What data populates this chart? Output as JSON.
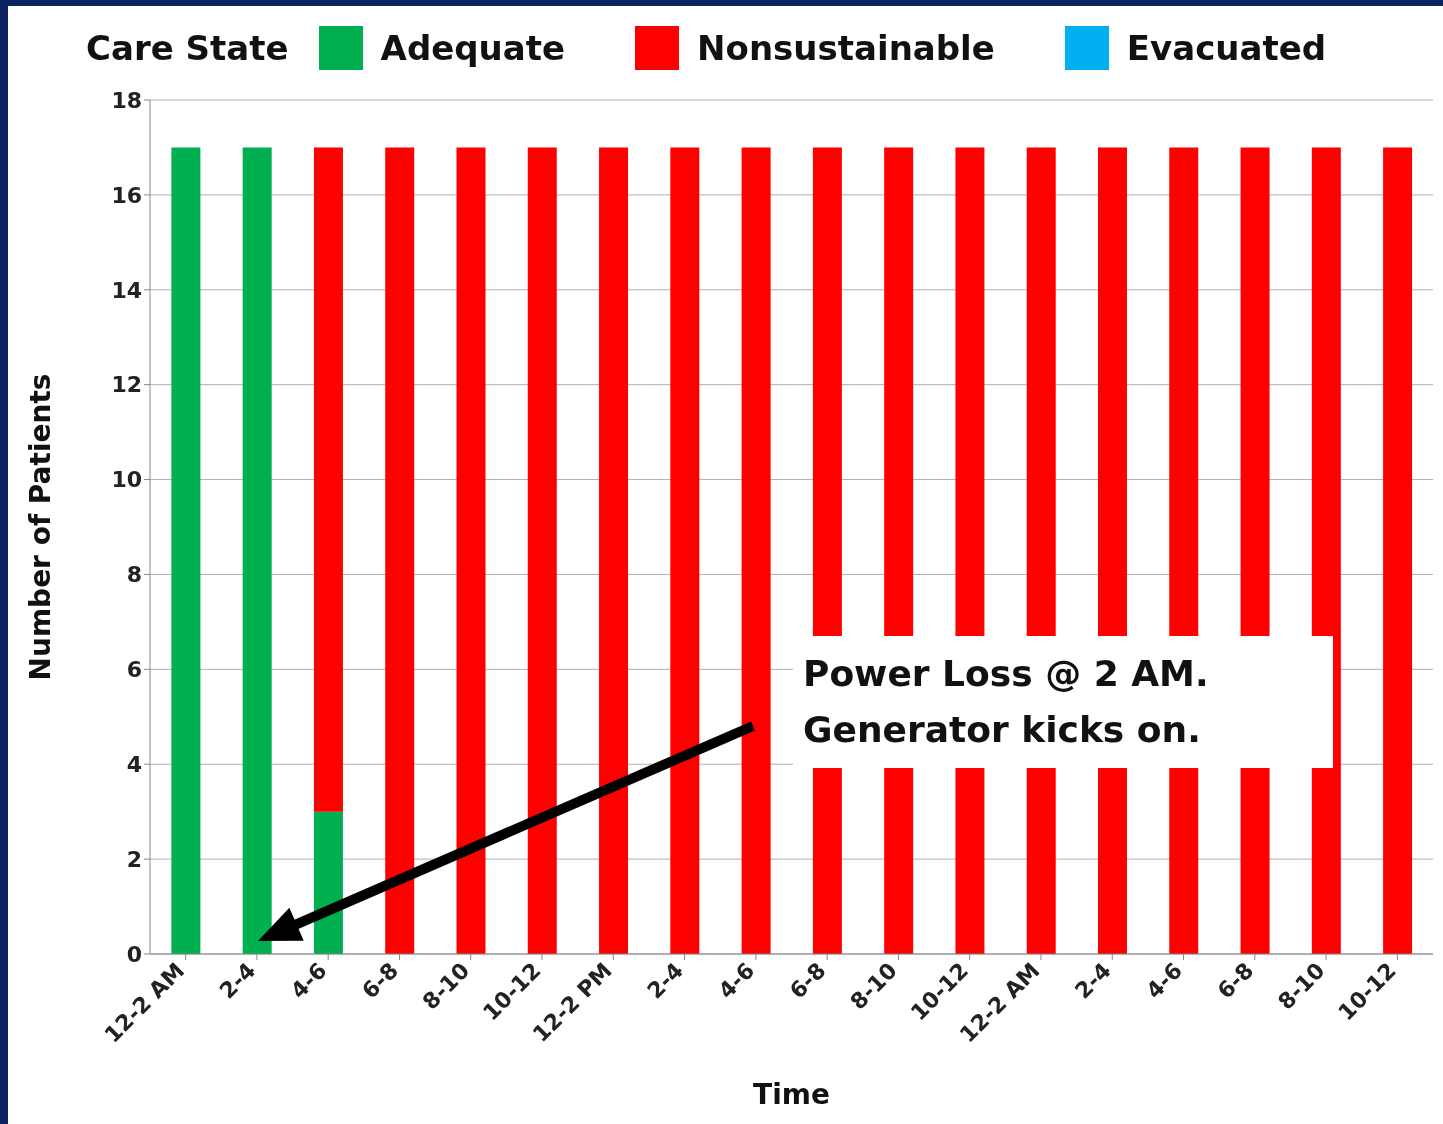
{
  "chart_data": {
    "type": "bar",
    "stacked": true,
    "legend_title": "Care State",
    "legend": "top",
    "xlabel": "Time",
    "ylabel": "Number of Patients",
    "categories": [
      "12-2 AM",
      "2-4",
      "4-6",
      "6-8",
      "8-10",
      "10-12",
      "12-2 PM",
      "2-4",
      "4-6",
      "6-8",
      "8-10",
      "10-12",
      "12-2 AM",
      "2-4",
      "4-6",
      "6-8",
      "8-10",
      "10-12"
    ],
    "series": [
      {
        "name": "Adequate",
        "color": "#00b050",
        "values": [
          17,
          17,
          3,
          0,
          0,
          0,
          0,
          0,
          0,
          0,
          0,
          0,
          0,
          0,
          0,
          0,
          0,
          0
        ]
      },
      {
        "name": "Nonsustainable",
        "color": "#ff0000",
        "values": [
          0,
          0,
          14,
          17,
          17,
          17,
          17,
          17,
          17,
          17,
          17,
          17,
          17,
          17,
          17,
          17,
          17,
          17
        ]
      },
      {
        "name": "Evacuated",
        "color": "#00b0f0",
        "values": [
          0,
          0,
          0,
          0,
          0,
          0,
          0,
          0,
          0,
          0,
          0,
          0,
          0,
          0,
          0,
          0,
          0,
          0
        ]
      }
    ],
    "ylim": [
      0,
      18
    ],
    "yticks": [
      0,
      2,
      4,
      6,
      8,
      10,
      12,
      14,
      16,
      18
    ],
    "grid": "y",
    "annotations": [
      "Power Loss @ 2 AM. Generator kicks on."
    ]
  }
}
